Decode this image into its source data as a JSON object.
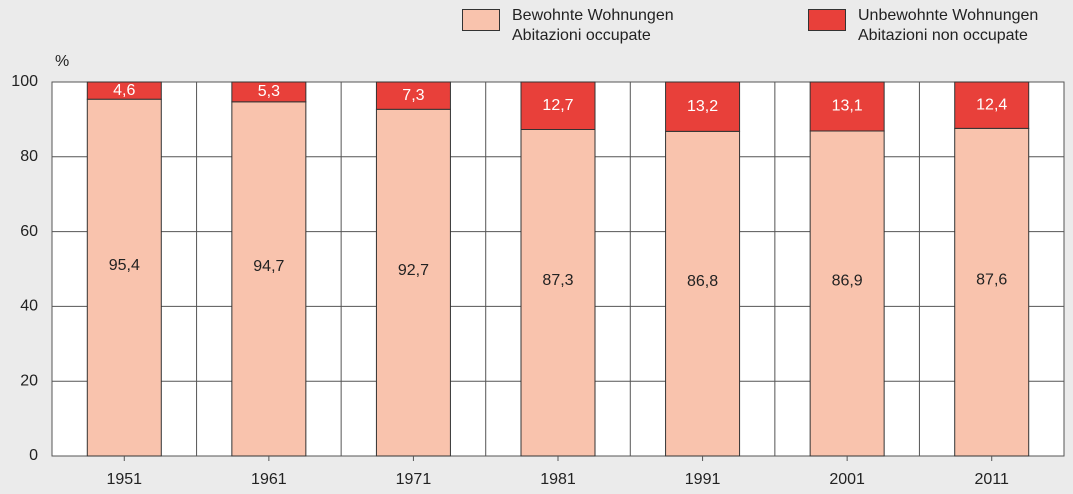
{
  "chart_data": {
    "type": "stacked_bar",
    "y_label": "%",
    "categories": [
      "1951",
      "1961",
      "1971",
      "1981",
      "1991",
      "2001",
      "2011"
    ],
    "series": [
      {
        "name": "Bewohnte Wohnungen\nAbitazioni occupate",
        "color": "#f9c3ad",
        "values": [
          95.4,
          94.7,
          92.7,
          87.3,
          86.8,
          86.9,
          87.6
        ],
        "value_labels": [
          "95,4",
          "94,7",
          "92,7",
          "87,3",
          "86,8",
          "86,9",
          "87,6"
        ]
      },
      {
        "name": "Unbewohnte Wohnungen\nAbitazioni non occupate",
        "color": "#e8403a",
        "values": [
          4.6,
          5.3,
          7.3,
          12.7,
          13.2,
          13.1,
          12.4
        ],
        "value_labels": [
          "4,6",
          "5,3",
          "7,3",
          "12,7",
          "13,2",
          "13,1",
          "12,4"
        ]
      }
    ],
    "ylim": [
      0,
      100
    ],
    "yticks": [
      0,
      20,
      40,
      60,
      80,
      100
    ],
    "grid": true
  }
}
